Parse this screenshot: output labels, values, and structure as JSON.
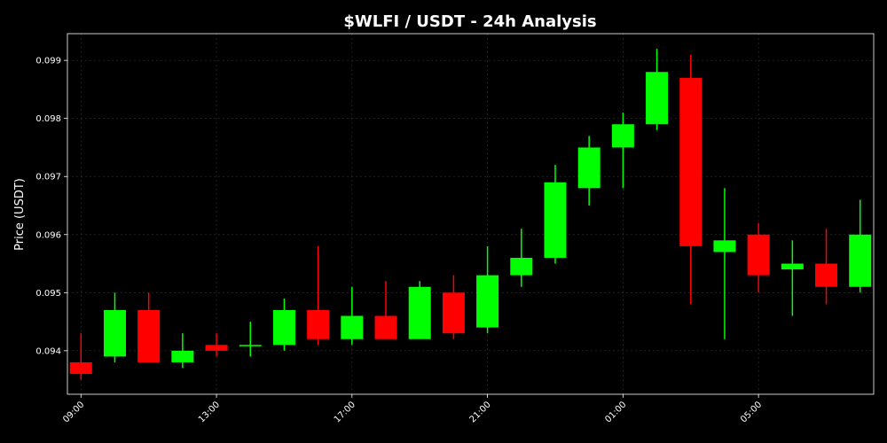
{
  "colors": {
    "background": "#000000",
    "up": "#00ff00",
    "down": "#ff0000",
    "axes": "#ffffff",
    "grid": "#333333",
    "text": "#ffffff"
  },
  "chart_data": {
    "type": "candlestick",
    "title": "$WLFI / USDT - 24h Analysis",
    "xlabel": "",
    "ylabel": "Price (USDT)",
    "ylim": [
      0.09325,
      0.09946
    ],
    "xlim": [
      -0.4,
      23.4
    ],
    "grid": true,
    "legend": "none",
    "y_ticks": [
      0.094,
      0.095,
      0.096,
      0.097,
      0.098,
      0.099
    ],
    "y_tick_labels": [
      "0.094",
      "0.095",
      "0.096",
      "0.097",
      "0.098",
      "0.099"
    ],
    "x_ticks": [
      0,
      4,
      8,
      12,
      16,
      20
    ],
    "x_tick_labels": [
      "09:00",
      "13:00",
      "17:00",
      "21:00",
      "01:00",
      "05:00"
    ],
    "candles": [
      {
        "time": "09:00",
        "open": 0.0938,
        "high": 0.0943,
        "low": 0.0935,
        "close": 0.0936
      },
      {
        "time": "10:00",
        "open": 0.0939,
        "high": 0.095,
        "low": 0.0938,
        "close": 0.0947
      },
      {
        "time": "11:00",
        "open": 0.0947,
        "high": 0.095,
        "low": 0.0938,
        "close": 0.0938
      },
      {
        "time": "12:00",
        "open": 0.0938,
        "high": 0.0943,
        "low": 0.0937,
        "close": 0.094
      },
      {
        "time": "13:00",
        "open": 0.0941,
        "high": 0.0943,
        "low": 0.0939,
        "close": 0.094
      },
      {
        "time": "14:00",
        "open": 0.0941,
        "high": 0.0945,
        "low": 0.0939,
        "close": 0.0941
      },
      {
        "time": "15:00",
        "open": 0.0941,
        "high": 0.0949,
        "low": 0.094,
        "close": 0.0947
      },
      {
        "time": "16:00",
        "open": 0.0947,
        "high": 0.0958,
        "low": 0.0941,
        "close": 0.0942
      },
      {
        "time": "17:00",
        "open": 0.0942,
        "high": 0.0951,
        "low": 0.0941,
        "close": 0.0946
      },
      {
        "time": "18:00",
        "open": 0.0946,
        "high": 0.0952,
        "low": 0.0942,
        "close": 0.0942
      },
      {
        "time": "19:00",
        "open": 0.0942,
        "high": 0.0952,
        "low": 0.0942,
        "close": 0.0951
      },
      {
        "time": "20:00",
        "open": 0.095,
        "high": 0.0953,
        "low": 0.0942,
        "close": 0.0943
      },
      {
        "time": "21:00",
        "open": 0.0944,
        "high": 0.0958,
        "low": 0.0943,
        "close": 0.0953
      },
      {
        "time": "22:00",
        "open": 0.0953,
        "high": 0.0961,
        "low": 0.0951,
        "close": 0.0956
      },
      {
        "time": "23:00",
        "open": 0.0956,
        "high": 0.0972,
        "low": 0.0955,
        "close": 0.0969
      },
      {
        "time": "00:00",
        "open": 0.0968,
        "high": 0.0977,
        "low": 0.0965,
        "close": 0.0975
      },
      {
        "time": "01:00",
        "open": 0.0975,
        "high": 0.0981,
        "low": 0.0968,
        "close": 0.0979
      },
      {
        "time": "02:00",
        "open": 0.0979,
        "high": 0.0992,
        "low": 0.0978,
        "close": 0.0988
      },
      {
        "time": "03:00",
        "open": 0.0987,
        "high": 0.0991,
        "low": 0.0948,
        "close": 0.0958
      },
      {
        "time": "04:00",
        "open": 0.0957,
        "high": 0.0968,
        "low": 0.0942,
        "close": 0.0959
      },
      {
        "time": "05:00",
        "open": 0.096,
        "high": 0.0962,
        "low": 0.095,
        "close": 0.0953
      },
      {
        "time": "06:00",
        "open": 0.0954,
        "high": 0.0959,
        "low": 0.0946,
        "close": 0.0955
      },
      {
        "time": "07:00",
        "open": 0.0955,
        "high": 0.0961,
        "low": 0.0948,
        "close": 0.0951
      },
      {
        "time": "08:00",
        "open": 0.0951,
        "high": 0.0966,
        "low": 0.095,
        "close": 0.096
      }
    ]
  }
}
